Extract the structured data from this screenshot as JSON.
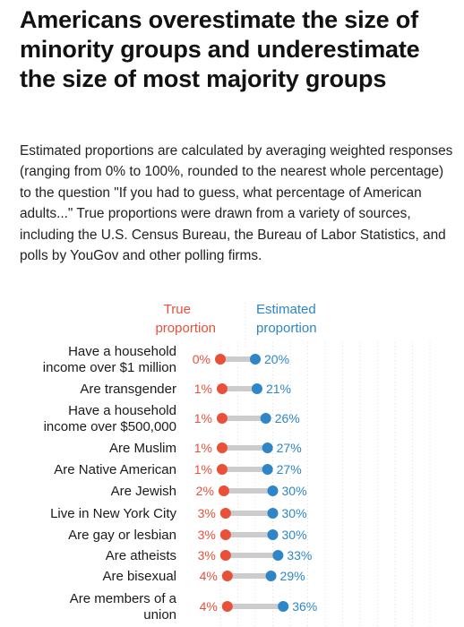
{
  "header": {
    "title": "Americans overestimate the size of minority groups and underestimate the size of most majority groups",
    "subtitle": "Estimated proportions are calculated by averaging weighted responses (ranging from 0% to 100%, rounded to the nearest whole percentage) to the question \"If you had to guess, what percentage of American adults...\" True proportions were drawn from a variety of sources, including the U.S. Census Bureau, the Bureau of Labor Statistics, and polls by YouGov and other polling firms."
  },
  "colors": {
    "true": "#e8503a",
    "estimated": "#2e86c8",
    "connector": "#cccccc",
    "grid": "#dddddd"
  },
  "chart_data": {
    "type": "dot",
    "title": "Americans overestimate the size of minority groups and underestimate the size of most majority groups",
    "xlim": [
      0,
      100
    ],
    "unit": "%",
    "grid": true,
    "legend": {
      "true": [
        "True",
        "proportion"
      ],
      "estimated": [
        "Estimated",
        "proportion"
      ]
    },
    "categories": [
      [
        "Have a household",
        "income over $1 million"
      ],
      [
        "Are transgender"
      ],
      [
        "Have a household",
        "income over $500,000"
      ],
      [
        "Are Muslim"
      ],
      [
        "Are Native American"
      ],
      [
        "Are Jewish"
      ],
      [
        "Live in New York City"
      ],
      [
        "Are gay or lesbian"
      ],
      [
        "Are atheists"
      ],
      [
        "Are bisexual"
      ],
      [
        "Are members of a",
        "union"
      ]
    ],
    "series": [
      {
        "name": "True proportion",
        "values": [
          0,
          1,
          1,
          1,
          1,
          2,
          3,
          3,
          3,
          4,
          4
        ]
      },
      {
        "name": "Estimated proportion",
        "values": [
          20,
          21,
          26,
          27,
          27,
          30,
          30,
          30,
          33,
          29,
          36
        ]
      }
    ]
  }
}
